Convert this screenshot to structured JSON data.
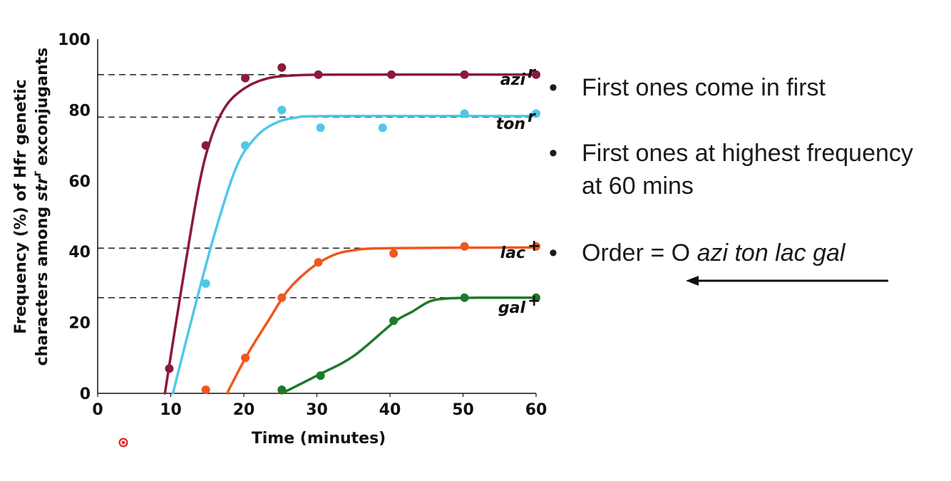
{
  "chart_data": {
    "type": "line",
    "xlabel": "Time (minutes)",
    "ylabel_line1": "Frequency (%) of Hfr genetic",
    "ylabel_line2_prefix": "characters among ",
    "ylabel_line2_italic": "str",
    "ylabel_line2_sup": "r",
    "ylabel_line2_suffix": " exconjugants",
    "xlim": [
      0,
      60
    ],
    "ylim": [
      0,
      100
    ],
    "x_ticks": [
      "0",
      "10",
      "20",
      "30",
      "40",
      "50",
      "60"
    ],
    "y_ticks": [
      "0",
      "20",
      "40",
      "60",
      "80",
      "100"
    ],
    "reference_lines": [
      90,
      78,
      41,
      27
    ],
    "series": [
      {
        "name": "azi",
        "sup": "r",
        "color": "#8b1a3a",
        "points": [
          [
            9.8,
            7
          ],
          [
            14.8,
            70
          ],
          [
            20.2,
            89
          ],
          [
            25.2,
            92
          ],
          [
            30.2,
            90
          ],
          [
            40.2,
            90
          ],
          [
            50.2,
            90
          ],
          [
            60,
            90
          ]
        ],
        "curve": [
          [
            9.2,
            0
          ],
          [
            11.5,
            30
          ],
          [
            13.8,
            58
          ],
          [
            15.5,
            72
          ],
          [
            17.5,
            81
          ],
          [
            20,
            86
          ],
          [
            23,
            88.8
          ],
          [
            27,
            89.8
          ],
          [
            35,
            90
          ],
          [
            60,
            90
          ]
        ]
      },
      {
        "name": "ton",
        "sup": "r",
        "color": "#4fc8e8",
        "points": [
          [
            14.8,
            31
          ],
          [
            20.2,
            70
          ],
          [
            25.2,
            80
          ],
          [
            30.5,
            75
          ],
          [
            39,
            75
          ],
          [
            50.2,
            79
          ],
          [
            60,
            79
          ]
        ],
        "curve": [
          [
            10.3,
            0
          ],
          [
            13,
            22
          ],
          [
            16,
            45
          ],
          [
            19,
            64
          ],
          [
            21.5,
            72
          ],
          [
            24,
            76
          ],
          [
            27,
            77.8
          ],
          [
            32,
            78.3
          ],
          [
            60,
            78.3
          ]
        ]
      },
      {
        "name": "lac",
        "sup": "+",
        "color": "#f0561e",
        "points": [
          [
            14.8,
            1
          ],
          [
            20.2,
            10
          ],
          [
            25.2,
            27
          ],
          [
            30.2,
            37
          ],
          [
            40.5,
            39.5
          ],
          [
            50.2,
            41.5
          ],
          [
            60,
            41.5
          ]
        ],
        "curve": [
          [
            17.7,
            0
          ],
          [
            20.5,
            11
          ],
          [
            23.5,
            21
          ],
          [
            26,
            29
          ],
          [
            29,
            35
          ],
          [
            32,
            38.8
          ],
          [
            35,
            40.4
          ],
          [
            40,
            41
          ],
          [
            60,
            41.2
          ]
        ]
      },
      {
        "name": "gal",
        "sup": "+",
        "color": "#1e7a2a",
        "points": [
          [
            25.2,
            1
          ],
          [
            30.5,
            5
          ],
          [
            40.5,
            20.5
          ],
          [
            50.2,
            27
          ],
          [
            60,
            27
          ]
        ],
        "curve": [
          [
            25.2,
            0
          ],
          [
            30,
            5
          ],
          [
            35,
            10.5
          ],
          [
            40.5,
            20
          ],
          [
            43,
            23
          ],
          [
            45.5,
            26
          ],
          [
            48,
            26.8
          ],
          [
            52,
            27
          ],
          [
            60,
            27
          ]
        ]
      }
    ]
  },
  "bullets": {
    "marker": "•",
    "item1": "First ones come in first",
    "item2_line1": "First ones at highest frequency",
    "item2_line2": "at 60 mins",
    "item3_prefix": "Order = O ",
    "item3_italic": "azi ton lac gal"
  },
  "icons": {
    "arrow": "left-arrow-icon",
    "cursor": "cursor-indicator-icon"
  }
}
